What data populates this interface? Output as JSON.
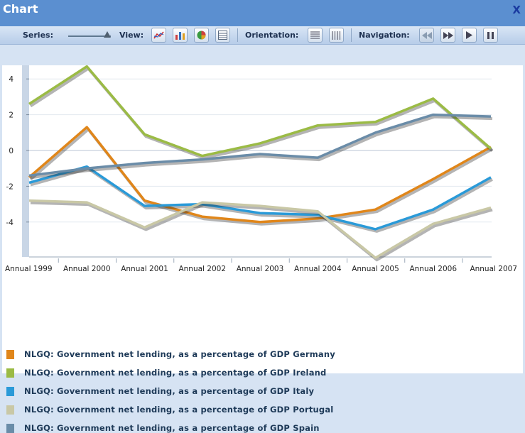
{
  "window": {
    "title": "Chart",
    "close_label": "X"
  },
  "toolbar": {
    "series_label": "Series:",
    "view_label": "View:",
    "orientation_label": "Orientation:",
    "navigation_label": "Navigation:",
    "view_icons": [
      "line-chart-icon",
      "bar-chart-icon",
      "pie-chart-icon",
      "table-icon"
    ],
    "orientation_icons": [
      "horizontal-lines-icon",
      "vertical-lines-icon"
    ],
    "navigation_icons": [
      "rewind-icon",
      "fast-forward-icon",
      "play-icon",
      "pause-icon"
    ]
  },
  "chart_data": {
    "type": "line",
    "x": [
      "Annual 1999",
      "Annual 2000",
      "Annual 2001",
      "Annual 2002",
      "Annual 2003",
      "Annual 2004",
      "Annual 2005",
      "Annual 2006",
      "Annual 2007"
    ],
    "ylim": [
      -6,
      5
    ],
    "yticks": [
      4,
      2,
      0,
      -2,
      -4
    ],
    "series": [
      {
        "name": "NLGQ: Government net lending, as a percentage of GDP Germany",
        "color": "#e0861a",
        "values": [
          -1.5,
          1.3,
          -2.8,
          -3.7,
          -4.0,
          -3.8,
          -3.3,
          -1.6,
          0.2
        ]
      },
      {
        "name": "NLGQ: Government net lending, as a percentage of GDP Ireland",
        "color": "#9bbb45",
        "values": [
          2.6,
          4.7,
          0.9,
          -0.3,
          0.4,
          1.4,
          1.6,
          2.9,
          0.1
        ]
      },
      {
        "name": "NLGQ: Government net lending, as a percentage of GDP Italy",
        "color": "#2a9ad8",
        "values": [
          -1.8,
          -0.9,
          -3.1,
          -3.0,
          -3.5,
          -3.6,
          -4.4,
          -3.3,
          -1.5
        ]
      },
      {
        "name": "NLGQ: Government net lending, as a percentage of GDP Portugal",
        "color": "#c9c8a6",
        "values": [
          -2.8,
          -2.9,
          -4.3,
          -2.9,
          -3.1,
          -3.4,
          -6.0,
          -4.1,
          -3.2
        ]
      },
      {
        "name": "NLGQ: Government net lending, as a percentage of GDP Spain",
        "color": "#6a8ca8",
        "values": [
          -1.4,
          -1.0,
          -0.7,
          -0.5,
          -0.2,
          -0.4,
          1.0,
          2.0,
          1.9
        ]
      }
    ],
    "grid": true,
    "legend": "bottom"
  }
}
